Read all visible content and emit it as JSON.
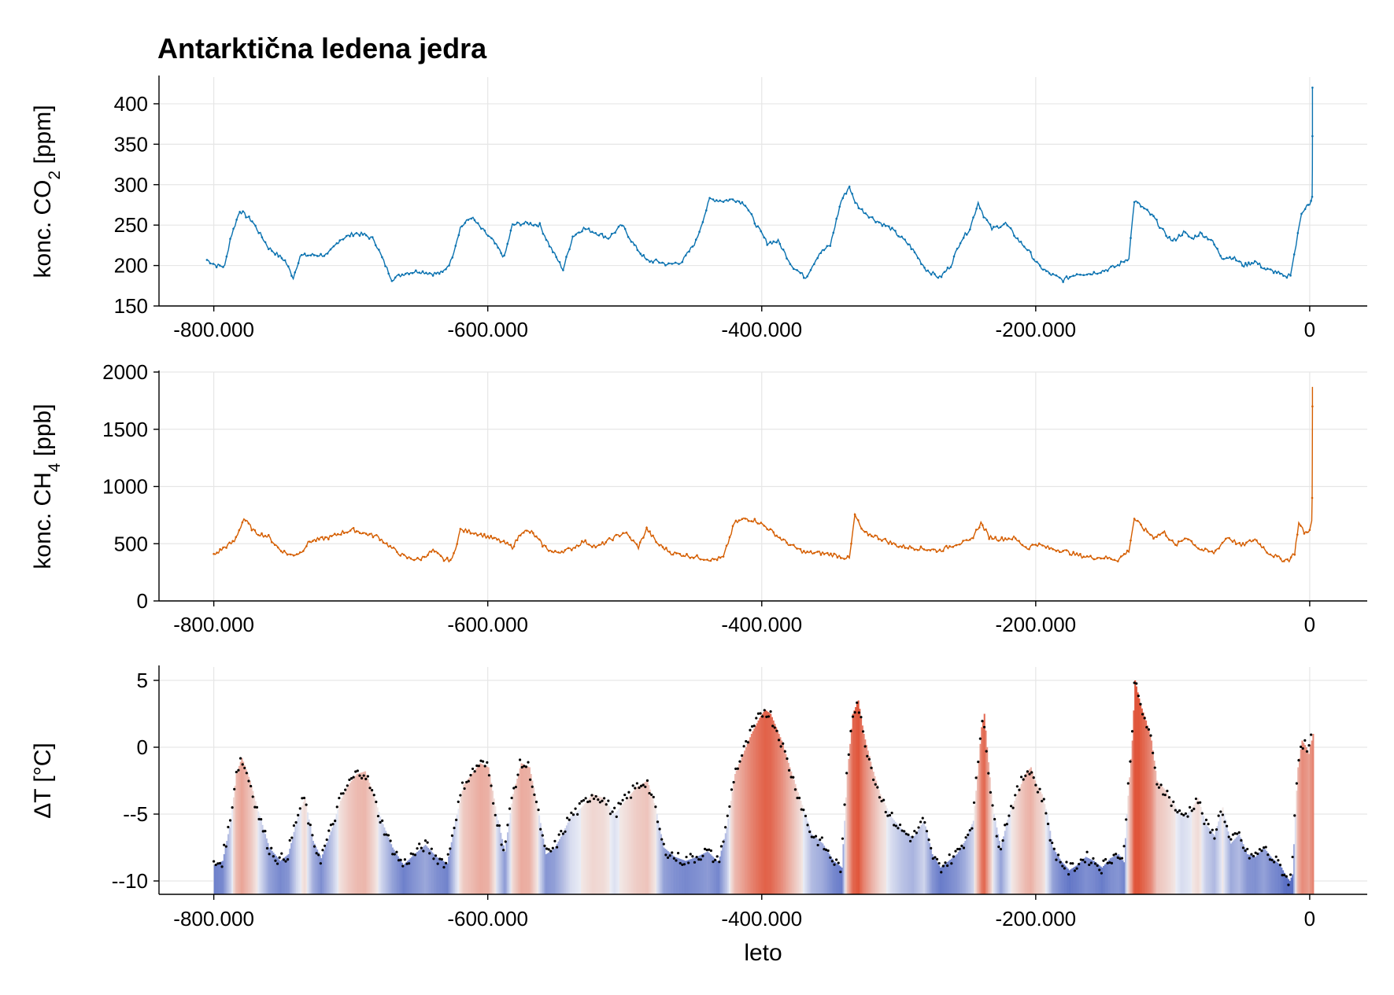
{
  "title": "Antarktična ledena jedra",
  "chart_data": [
    {
      "type": "line",
      "name": "co2",
      "ylabel_main": "konc. CO",
      "ylabel_sub": "2",
      "ylabel_unit": " [ppm]",
      "xlabel": "",
      "color": "#0a72b0",
      "xlim": [
        -840000,
        42000
      ],
      "ylim": [
        150,
        433
      ],
      "yticks": [
        150,
        200,
        250,
        300,
        350,
        400
      ],
      "ytick_labels": [
        "150",
        "200",
        "250",
        "300",
        "350",
        "400"
      ],
      "xticks": [
        -800000,
        -600000,
        -400000,
        -200000,
        0
      ],
      "xtick_labels": [
        "-800.000",
        "-600.000",
        "-400.000",
        "-200.000",
        "0"
      ],
      "series": [
        {
          "name": "CO2",
          "x": [
            -805000,
            -798000,
            -792000,
            -788000,
            -781000,
            -772000,
            -760000,
            -748000,
            -742000,
            -737000,
            -728000,
            -717000,
            -708000,
            -697000,
            -690000,
            -683000,
            -676000,
            -670000,
            -660000,
            -650000,
            -640000,
            -633000,
            -627000,
            -620000,
            -612000,
            -606000,
            -596000,
            -588000,
            -582000,
            -576000,
            -570000,
            -562000,
            -555000,
            -545000,
            -538000,
            -530000,
            -520000,
            -512000,
            -502000,
            -493000,
            -484000,
            -476000,
            -468000,
            -458000,
            -448000,
            -438000,
            -428000,
            -420000,
            -412000,
            -404000,
            -396000,
            -388000,
            -378000,
            -368000,
            -358000,
            -350000,
            -342000,
            -336000,
            -333000,
            -328000,
            -318000,
            -306000,
            -292000,
            -280000,
            -270000,
            -262000,
            -255000,
            -248000,
            -242000,
            -238000,
            -232000,
            -222000,
            -212000,
            -206000,
            -198000,
            -190000,
            -180000,
            -170000,
            -160000,
            -150000,
            -140000,
            -132000,
            -128000,
            -122000,
            -114000,
            -106000,
            -100000,
            -92000,
            -86000,
            -80000,
            -72000,
            -64000,
            -56000,
            -48000,
            -40000,
            -32000,
            -24000,
            -18000,
            -14000,
            -10000,
            -6000,
            -2000,
            0,
            1000,
            1500,
            1800,
            1950,
            1990,
            2015,
            2020
          ],
          "y": [
            207,
            200,
            199,
            233,
            268,
            255,
            222,
            206,
            185,
            212,
            213,
            213,
            232,
            240,
            238,
            232,
            205,
            183,
            191,
            193,
            190,
            191,
            205,
            247,
            260,
            248,
            230,
            210,
            250,
            252,
            252,
            250,
            225,
            195,
            236,
            246,
            240,
            234,
            250,
            225,
            206,
            205,
            201,
            205,
            230,
            282,
            280,
            282,
            276,
            250,
            228,
            230,
            200,
            185,
            215,
            225,
            280,
            298,
            282,
            270,
            257,
            246,
            225,
            195,
            185,
            200,
            230,
            246,
            278,
            262,
            245,
            252,
            230,
            220,
            200,
            190,
            182,
            190,
            190,
            194,
            200,
            210,
            280,
            272,
            260,
            240,
            230,
            241,
            233,
            240,
            232,
            210,
            210,
            200,
            205,
            195,
            192,
            185,
            190,
            225,
            265,
            275,
            275,
            280,
            283,
            285,
            320,
            360,
            400,
            420
          ]
        }
      ]
    },
    {
      "type": "line",
      "name": "ch4",
      "ylabel_main": "konc. CH",
      "ylabel_sub": "4",
      "ylabel_unit": " [ppb]",
      "xlabel": "",
      "color": "#d55e00",
      "xlim": [
        -840000,
        42000
      ],
      "ylim": [
        0,
        2000
      ],
      "yticks": [
        0,
        500,
        1000,
        1500,
        2000
      ],
      "ytick_labels": [
        "0",
        "500",
        "1000",
        "1500",
        "2000"
      ],
      "xticks": [
        -800000,
        -600000,
        -400000,
        -200000,
        0
      ],
      "xtick_labels": [
        "-800.000",
        "-600.000",
        "-400.000",
        "-200.000",
        "0"
      ],
      "series": [
        {
          "name": "CH4",
          "x": [
            -800000,
            -792000,
            -785000,
            -778000,
            -770000,
            -760000,
            -752000,
            -744000,
            -737000,
            -730000,
            -722000,
            -714000,
            -706000,
            -698000,
            -690000,
            -680000,
            -670000,
            -660000,
            -650000,
            -640000,
            -632000,
            -626000,
            -620000,
            -610000,
            -600000,
            -592000,
            -582000,
            -575000,
            -568000,
            -560000,
            -552000,
            -540000,
            -530000,
            -520000,
            -510000,
            -500000,
            -490000,
            -484000,
            -476000,
            -466000,
            -456000,
            -446000,
            -436000,
            -428000,
            -420000,
            -412000,
            -404000,
            -396000,
            -388000,
            -378000,
            -368000,
            -358000,
            -346000,
            -336000,
            -332000,
            -326000,
            -316000,
            -300000,
            -285000,
            -270000,
            -258000,
            -248000,
            -240000,
            -234000,
            -226000,
            -216000,
            -206000,
            -200000,
            -190000,
            -180000,
            -170000,
            -160000,
            -150000,
            -140000,
            -132000,
            -128000,
            -122000,
            -114000,
            -106000,
            -98000,
            -90000,
            -80000,
            -70000,
            -60000,
            -50000,
            -40000,
            -30000,
            -20000,
            -15000,
            -11000,
            -8000,
            -4000,
            -1000,
            0,
            1500,
            1800,
            1900,
            1990,
            2020
          ],
          "y": [
            400,
            470,
            520,
            720,
            600,
            560,
            450,
            400,
            420,
            520,
            540,
            560,
            600,
            620,
            590,
            560,
            460,
            380,
            360,
            440,
            360,
            360,
            620,
            600,
            560,
            530,
            470,
            610,
            600,
            490,
            420,
            450,
            520,
            470,
            540,
            600,
            470,
            630,
            500,
            420,
            400,
            380,
            360,
            380,
            680,
            720,
            700,
            640,
            560,
            480,
            420,
            420,
            400,
            370,
            750,
            600,
            560,
            480,
            460,
            440,
            500,
            520,
            680,
            560,
            540,
            550,
            460,
            500,
            460,
            440,
            400,
            380,
            380,
            360,
            440,
            720,
            640,
            560,
            600,
            480,
            560,
            450,
            420,
            560,
            480,
            540,
            420,
            360,
            360,
            420,
            680,
            600,
            600,
            620,
            700,
            900,
            1200,
            1700,
            1870
          ]
        }
      ]
    },
    {
      "type": "scatter",
      "name": "temperature",
      "ylabel_main": "ΔT [°C]",
      "ylabel_sub": "",
      "ylabel_unit": "",
      "xlabel": "leto",
      "color": "#000000",
      "fill_cold": "#5a6fc4",
      "fill_warm": "#e0553a",
      "xlim": [
        -840000,
        42000
      ],
      "ylim": [
        -11,
        6
      ],
      "yticks": [
        -10,
        -5,
        0,
        5
      ],
      "ytick_labels": [
        "--10",
        "--5",
        "0",
        "5"
      ],
      "xticks": [
        -800000,
        -600000,
        -400000,
        -200000,
        0
      ],
      "xtick_labels": [
        "-800.000",
        "-600.000",
        "-400.000",
        "-200.000",
        "0"
      ],
      "series": [
        {
          "name": "dT",
          "x": [
            -800000,
            -794000,
            -788000,
            -784000,
            -780000,
            -774000,
            -768000,
            -760000,
            -752000,
            -746000,
            -740000,
            -734000,
            -728000,
            -722000,
            -714000,
            -708000,
            -702000,
            -696000,
            -690000,
            -684000,
            -678000,
            -670000,
            -662000,
            -654000,
            -646000,
            -638000,
            -630000,
            -624000,
            -618000,
            -612000,
            -606000,
            -600000,
            -594000,
            -588000,
            -582000,
            -576000,
            -570000,
            -564000,
            -558000,
            -552000,
            -546000,
            -540000,
            -532000,
            -524000,
            -516000,
            -508000,
            -500000,
            -492000,
            -484000,
            -478000,
            -472000,
            -464000,
            -456000,
            -448000,
            -440000,
            -432000,
            -426000,
            -420000,
            -414000,
            -408000,
            -402000,
            -398000,
            -394000,
            -390000,
            -386000,
            -380000,
            -372000,
            -364000,
            -356000,
            -348000,
            -342000,
            -338000,
            -334000,
            -330000,
            -326000,
            -320000,
            -314000,
            -306000,
            -298000,
            -290000,
            -282000,
            -276000,
            -270000,
            -264000,
            -258000,
            -252000,
            -246000,
            -242000,
            -240000,
            -238000,
            -236000,
            -232000,
            -226000,
            -220000,
            -214000,
            -208000,
            -204000,
            -200000,
            -196000,
            -192000,
            -188000,
            -182000,
            -176000,
            -170000,
            -164000,
            -158000,
            -152000,
            -146000,
            -140000,
            -136000,
            -134000,
            -130000,
            -128000,
            -124000,
            -120000,
            -116000,
            -112000,
            -106000,
            -100000,
            -94000,
            -88000,
            -82000,
            -76000,
            -70000,
            -64000,
            -58000,
            -52000,
            -46000,
            -40000,
            -34000,
            -28000,
            -22000,
            -18000,
            -15000,
            -13000,
            -11000,
            -9000,
            -6000,
            -3000,
            -1000,
            0,
            1000,
            2000
          ],
          "y": [
            -8.8,
            -8.5,
            -5.5,
            -2.0,
            -0.8,
            -2.5,
            -4.8,
            -7.5,
            -8.5,
            -8.0,
            -5.5,
            -3.8,
            -7.0,
            -8.3,
            -6.0,
            -4.0,
            -2.8,
            -2.0,
            -1.8,
            -3.5,
            -5.5,
            -7.5,
            -8.8,
            -8.0,
            -7.3,
            -8.2,
            -8.7,
            -5.5,
            -2.8,
            -2.0,
            -1.2,
            -1.5,
            -5.0,
            -7.8,
            -3.5,
            -1.2,
            -1.5,
            -4.5,
            -8.0,
            -7.6,
            -6.5,
            -5.2,
            -4.5,
            -3.5,
            -3.8,
            -5.0,
            -4.0,
            -3.0,
            -2.5,
            -4.5,
            -7.5,
            -8.2,
            -8.5,
            -8.2,
            -7.8,
            -8.6,
            -6.0,
            -2.0,
            -0.5,
            1.0,
            2.2,
            2.8,
            2.5,
            1.5,
            0.5,
            -1.5,
            -4.0,
            -6.5,
            -7.2,
            -8.5,
            -9.0,
            -2.0,
            2.5,
            3.5,
            1.0,
            -1.5,
            -3.5,
            -5.2,
            -6.2,
            -6.8,
            -5.5,
            -8.0,
            -9.0,
            -8.5,
            -8.0,
            -7.0,
            -5.5,
            -1.0,
            1.5,
            2.5,
            0.0,
            -4.5,
            -7.5,
            -5.0,
            -3.5,
            -2.0,
            -1.5,
            -2.8,
            -3.5,
            -5.0,
            -7.5,
            -8.5,
            -9.2,
            -8.8,
            -8.2,
            -8.5,
            -9.0,
            -8.3,
            -8.0,
            -8.6,
            -5.0,
            0.5,
            5.0,
            3.2,
            2.0,
            0.5,
            -2.5,
            -3.2,
            -4.2,
            -5.2,
            -4.8,
            -3.8,
            -5.8,
            -6.6,
            -4.5,
            -7.2,
            -6.5,
            -8.0,
            -8.2,
            -7.5,
            -8.3,
            -8.8,
            -9.6,
            -10.0,
            -9.5,
            -5.0,
            -1.5,
            0.5,
            0.0,
            -0.5,
            0.2,
            0.5,
            1.0
          ]
        }
      ]
    }
  ]
}
